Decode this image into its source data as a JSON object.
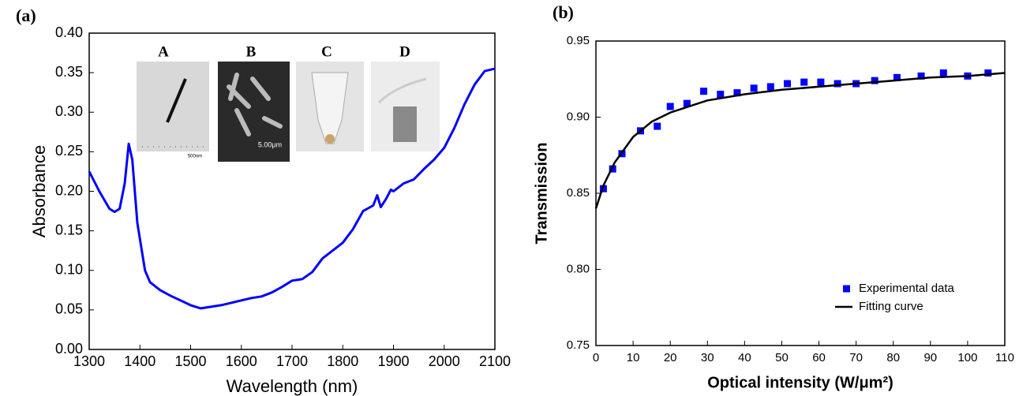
{
  "chart_data": [
    {
      "type": "line",
      "label": "(a)",
      "x_label": "Wavelength (nm)",
      "y_label": "Absorbance",
      "xlim": [
        1300,
        2100
      ],
      "xticks": [
        1300,
        1400,
        1500,
        1600,
        1700,
        1800,
        1900,
        2000,
        2100
      ],
      "ylim": [
        0,
        0.4
      ],
      "yticks": [
        {
          "value": 0,
          "label": "0.00"
        },
        0.05,
        {
          "value": 0.1,
          "label": "0.10"
        },
        0.15,
        {
          "value": 0.2,
          "label": "0.20"
        },
        0.25,
        {
          "value": 0.3,
          "label": "0.30"
        },
        0.35,
        {
          "value": 0.4,
          "label": "0.40"
        }
      ],
      "annotations": [
        "A",
        "B",
        "C",
        "D",
        "500nm",
        "5.00μm"
      ],
      "series": [
        {
          "mode": "line",
          "color": "#0000ff",
          "x": [
            1300,
            1320,
            1340,
            1350,
            1360,
            1370,
            1378,
            1385,
            1395,
            1410,
            1420,
            1440,
            1460,
            1480,
            1500,
            1520,
            1540,
            1560,
            1580,
            1600,
            1620,
            1640,
            1660,
            1680,
            1700,
            1720,
            1740,
            1760,
            1780,
            1800,
            1820,
            1840,
            1860,
            1868,
            1875,
            1885,
            1895,
            1900,
            1920,
            1940,
            1960,
            1980,
            2000,
            2020,
            2040,
            2060,
            2080,
            2100
          ],
          "values": [
            0.225,
            0.2,
            0.178,
            0.174,
            0.178,
            0.21,
            0.26,
            0.24,
            0.16,
            0.1,
            0.085,
            0.075,
            0.068,
            0.062,
            0.056,
            0.052,
            0.054,
            0.056,
            0.059,
            0.062,
            0.065,
            0.067,
            0.072,
            0.079,
            0.087,
            0.089,
            0.098,
            0.115,
            0.125,
            0.135,
            0.152,
            0.175,
            0.182,
            0.195,
            0.18,
            0.19,
            0.202,
            0.2,
            0.21,
            0.215,
            0.228,
            0.24,
            0.255,
            0.28,
            0.31,
            0.335,
            0.352,
            0.355
          ]
        }
      ]
    },
    {
      "type": "scatter",
      "label": "(b)",
      "x_label": "Optical intensity (W/μm²)",
      "y_label": "Transmission",
      "xlim": [
        0,
        110
      ],
      "xticks": [
        0,
        10,
        20,
        30,
        40,
        50,
        60,
        70,
        80,
        90,
        100,
        110
      ],
      "ylim": [
        0.75,
        0.95
      ],
      "yticks": [
        0.75,
        {
          "value": 0.8,
          "label": "0.80"
        },
        0.85,
        {
          "value": 0.9,
          "label": "0.90"
        },
        0.95
      ],
      "legend": "lower right",
      "series": [
        {
          "name": "Experimental data",
          "mode": "markers",
          "color": "#0000ff",
          "x": [
            2,
            4.5,
            7,
            12,
            16.5,
            20,
            24.5,
            29,
            33.5,
            38,
            42.5,
            47,
            51.5,
            56,
            60.5,
            65,
            70,
            75,
            81,
            87.5,
            93.5,
            100,
            105.5
          ],
          "values": [
            0.853,
            0.866,
            0.876,
            0.891,
            0.894,
            0.907,
            0.909,
            0.917,
            0.915,
            0.916,
            0.919,
            0.92,
            0.922,
            0.923,
            0.923,
            0.922,
            0.922,
            0.924,
            0.926,
            0.927,
            0.929,
            0.927,
            0.929
          ]
        },
        {
          "name": "Fitting curve",
          "mode": "line",
          "color": "#000000",
          "x": [
            0,
            2,
            5,
            10,
            15,
            20,
            30,
            40,
            50,
            60,
            70,
            80,
            90,
            100,
            110
          ],
          "values": [
            0.84,
            0.855,
            0.87,
            0.887,
            0.897,
            0.903,
            0.911,
            0.915,
            0.918,
            0.92,
            0.922,
            0.924,
            0.926,
            0.927,
            0.929
          ]
        }
      ]
    }
  ]
}
